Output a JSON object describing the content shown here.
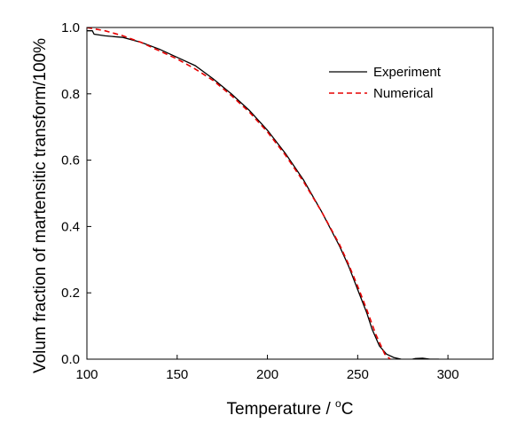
{
  "chart_data": {
    "type": "line",
    "xlabel": "Temperature / ",
    "xlabel_unit_sup": "o",
    "xlabel_unit": "C",
    "ylabel": "Volum fraction of martensitic transform/100%",
    "xlim": [
      100,
      325
    ],
    "ylim": [
      0,
      1.0
    ],
    "xticks": [
      100,
      150,
      200,
      250,
      300
    ],
    "xtick_labels": [
      "100",
      "150",
      "200",
      "250",
      "300"
    ],
    "yticks": [
      0,
      0.2,
      0.4,
      0.6,
      0.8,
      1.0
    ],
    "ytick_labels": [
      "0.0",
      "0.2",
      "0.4",
      "0.6",
      "0.8",
      "1.0"
    ],
    "grid": false,
    "legend_position": "top-right",
    "series": [
      {
        "name": "Experiment",
        "color": "#000000",
        "style": "solid",
        "x": [
          100,
          103,
          104,
          110,
          120,
          130,
          140,
          150,
          160,
          170,
          180,
          190,
          200,
          210,
          220,
          230,
          240,
          245,
          250,
          255,
          258,
          262,
          266,
          270,
          274,
          278,
          282,
          286,
          290,
          295
        ],
        "y": [
          0.99,
          0.99,
          0.98,
          0.975,
          0.97,
          0.955,
          0.935,
          0.91,
          0.885,
          0.845,
          0.8,
          0.75,
          0.69,
          0.62,
          0.54,
          0.445,
          0.34,
          0.28,
          0.21,
          0.14,
          0.09,
          0.04,
          0.015,
          0.005,
          0.0,
          -0.003,
          0.002,
          0.003,
          0.0,
          0.0
        ]
      },
      {
        "name": "Numerical",
        "color": "#e60000",
        "style": "dashed",
        "x": [
          100,
          110,
          120,
          130,
          140,
          150,
          160,
          170,
          180,
          190,
          200,
          210,
          220,
          230,
          240,
          245,
          250,
          255,
          260,
          265,
          268
        ],
        "y": [
          1.0,
          0.99,
          0.975,
          0.955,
          0.93,
          0.905,
          0.875,
          0.84,
          0.795,
          0.745,
          0.685,
          0.615,
          0.535,
          0.445,
          0.345,
          0.285,
          0.22,
          0.15,
          0.075,
          0.015,
          0.0
        ]
      }
    ]
  }
}
